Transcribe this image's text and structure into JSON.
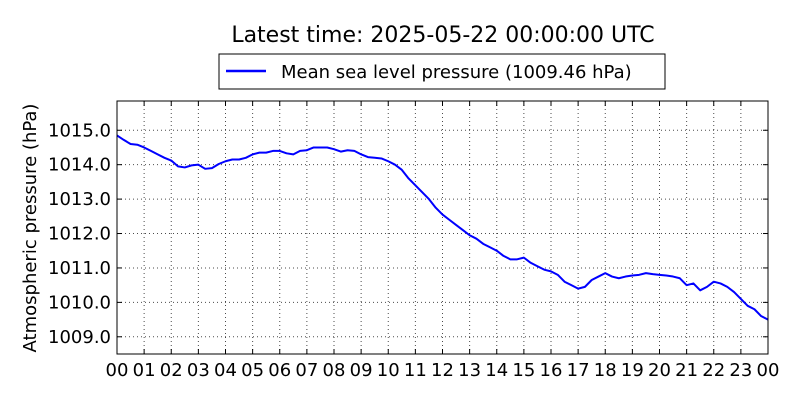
{
  "chart_data": {
    "type": "line",
    "title": "Latest time: 2025-05-22 00:00:00 UTC",
    "xlabel": "",
    "ylabel": "Atmospheric pressure (hPa)",
    "xlim": [
      0,
      24
    ],
    "ylim": [
      1008.5,
      1015.85
    ],
    "grid": true,
    "legend_position": "top-center",
    "line_color": "#0000ff",
    "x_tick_labels": [
      "00",
      "01",
      "02",
      "03",
      "04",
      "05",
      "06",
      "07",
      "08",
      "09",
      "10",
      "11",
      "12",
      "13",
      "14",
      "15",
      "16",
      "17",
      "18",
      "19",
      "20",
      "21",
      "22",
      "23",
      "00"
    ],
    "y_ticks": [
      1009.0,
      1010.0,
      1011.0,
      1012.0,
      1013.0,
      1014.0,
      1015.0
    ],
    "y_tick_labels": [
      "1009.0",
      "1010.0",
      "1011.0",
      "1012.0",
      "1013.0",
      "1014.0",
      "1015.0"
    ],
    "series": [
      {
        "name": "Mean sea level pressure (1009.46 hPa)",
        "x": [
          0,
          0.25,
          0.5,
          0.75,
          1.0,
          1.25,
          1.5,
          1.75,
          2.0,
          2.25,
          2.5,
          2.75,
          3.0,
          3.25,
          3.5,
          3.75,
          4.0,
          4.25,
          4.5,
          4.75,
          5.0,
          5.25,
          5.5,
          5.75,
          6.0,
          6.25,
          6.5,
          6.75,
          7.0,
          7.25,
          7.5,
          7.75,
          8.0,
          8.25,
          8.5,
          8.75,
          9.0,
          9.25,
          9.5,
          9.75,
          10.0,
          10.25,
          10.5,
          10.75,
          11.0,
          11.25,
          11.5,
          11.75,
          12.0,
          12.25,
          12.5,
          12.75,
          13.0,
          13.25,
          13.5,
          13.75,
          14.0,
          14.25,
          14.5,
          14.75,
          15.0,
          15.25,
          15.5,
          15.75,
          16.0,
          16.25,
          16.5,
          16.75,
          17.0,
          17.25,
          17.5,
          17.75,
          18.0,
          18.25,
          18.5,
          18.75,
          19.0,
          19.25,
          19.5,
          19.75,
          20.0,
          20.25,
          20.5,
          20.75,
          21.0,
          21.25,
          21.5,
          21.75,
          22.0,
          22.25,
          22.5,
          22.75,
          23.0,
          23.25,
          23.5,
          23.75,
          24.0
        ],
        "y": [
          1014.85,
          1014.72,
          1014.6,
          1014.58,
          1014.5,
          1014.4,
          1014.3,
          1014.2,
          1014.12,
          1013.95,
          1013.92,
          1013.98,
          1014.0,
          1013.88,
          1013.9,
          1014.02,
          1014.1,
          1014.15,
          1014.15,
          1014.2,
          1014.3,
          1014.35,
          1014.35,
          1014.4,
          1014.4,
          1014.33,
          1014.3,
          1014.4,
          1014.42,
          1014.5,
          1014.5,
          1014.5,
          1014.45,
          1014.38,
          1014.42,
          1014.4,
          1014.3,
          1014.22,
          1014.2,
          1014.18,
          1014.1,
          1014.0,
          1013.85,
          1013.6,
          1013.4,
          1013.2,
          1013.0,
          1012.75,
          1012.55,
          1012.4,
          1012.25,
          1012.1,
          1011.95,
          1011.85,
          1011.7,
          1011.6,
          1011.5,
          1011.35,
          1011.25,
          1011.25,
          1011.3,
          1011.15,
          1011.05,
          1010.95,
          1010.9,
          1010.8,
          1010.6,
          1010.5,
          1010.4,
          1010.45,
          1010.65,
          1010.75,
          1010.85,
          1010.75,
          1010.7,
          1010.75,
          1010.78,
          1010.8,
          1010.85,
          1010.82,
          1010.8,
          1010.78,
          1010.75,
          1010.7,
          1010.5,
          1010.55,
          1010.35,
          1010.45,
          1010.6,
          1010.55,
          1010.45,
          1010.3,
          1010.1,
          1009.9,
          1009.8,
          1009.6,
          1009.5
        ]
      }
    ]
  }
}
